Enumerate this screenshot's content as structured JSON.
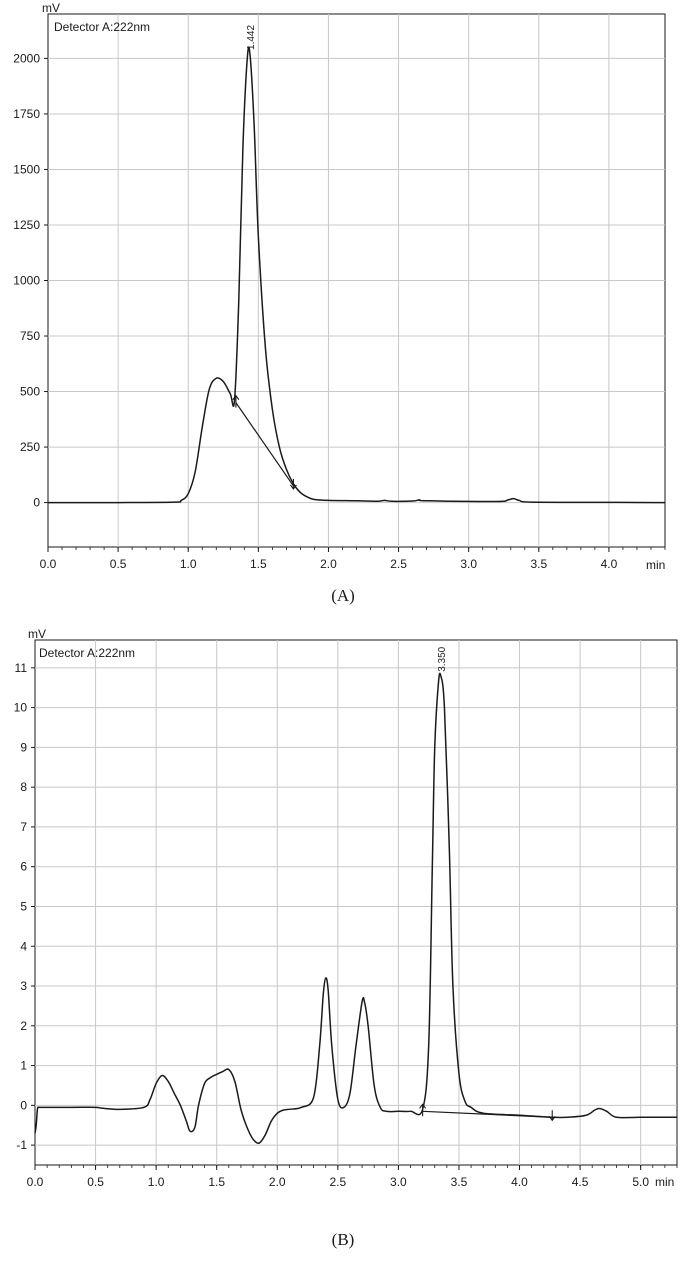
{
  "figure": {
    "caption_a": "(A)",
    "caption_b": "(B)"
  },
  "chart_data": [
    {
      "type": "line",
      "panel_caption": "(A)",
      "detector_label": "Detector A:222nm",
      "y_unit": "mV",
      "x_unit": "min",
      "xlim": [
        0,
        4.4
      ],
      "ylim": [
        -200,
        2200
      ],
      "x_ticks": [
        0.0,
        0.5,
        1.0,
        1.5,
        2.0,
        2.5,
        3.0,
        3.5,
        4.0
      ],
      "x_tick_labels": [
        "0.0",
        "0.5",
        "1.0",
        "1.5",
        "2.0",
        "2.5",
        "3.0",
        "3.5",
        "4.0"
      ],
      "y_ticks": [
        0,
        250,
        500,
        750,
        1000,
        1250,
        1500,
        1750,
        2000
      ],
      "y_tick_labels": [
        "0",
        "250",
        "500",
        "750",
        "1000",
        "1250",
        "1500",
        "1750",
        "2000"
      ],
      "grid": true,
      "series": [
        {
          "x": [
            0.0,
            0.5,
            0.9,
            0.95,
            1.0,
            1.05,
            1.1,
            1.15,
            1.2,
            1.25,
            1.3,
            1.33,
            1.36,
            1.39,
            1.42,
            1.44,
            1.47,
            1.5,
            1.55,
            1.6,
            1.65,
            1.7,
            1.75,
            1.8,
            1.85,
            1.9,
            2.0,
            2.2,
            2.35,
            2.4,
            2.45,
            2.6,
            2.65,
            2.7,
            3.2,
            3.28,
            3.32,
            3.36,
            3.45,
            4.0,
            4.4
          ],
          "y": [
            0,
            0,
            2,
            10,
            40,
            140,
            340,
            510,
            560,
            545,
            490,
            460,
            900,
            1600,
            1990,
            2020,
            1700,
            1200,
            700,
            420,
            250,
            150,
            85,
            45,
            25,
            14,
            10,
            8,
            6,
            10,
            6,
            7,
            12,
            8,
            5,
            12,
            18,
            10,
            2,
            1,
            0
          ]
        }
      ],
      "peak_labels": [
        {
          "x": 1.442,
          "y": 2020,
          "text": "1.442"
        }
      ],
      "integration_baseline": {
        "x": [
          1.34,
          1.75
        ],
        "y": [
          450,
          75
        ]
      },
      "integration_markers": [
        {
          "x": 1.34,
          "y": 450,
          "direction": "up"
        },
        {
          "x": 1.75,
          "y": 75,
          "direction": "down"
        }
      ]
    },
    {
      "type": "line",
      "panel_caption": "(B)",
      "detector_label": "Detector A:222nm",
      "y_unit": "mV",
      "x_unit": "min",
      "xlim": [
        0,
        5.3
      ],
      "ylim": [
        -1.5,
        11.7
      ],
      "x_ticks": [
        0.0,
        0.5,
        1.0,
        1.5,
        2.0,
        2.5,
        3.0,
        3.5,
        4.0,
        4.5,
        5.0
      ],
      "x_tick_labels": [
        "0.0",
        "0.5",
        "1.0",
        "1.5",
        "2.0",
        "2.5",
        "3.0",
        "3.5",
        "4.0",
        "4.5",
        "5.0"
      ],
      "y_ticks": [
        -1,
        0,
        1,
        2,
        3,
        4,
        5,
        6,
        7,
        8,
        9,
        10,
        11
      ],
      "y_tick_labels": [
        "-1",
        "0",
        "1",
        "2",
        "3",
        "4",
        "5",
        "6",
        "7",
        "8",
        "9",
        "10",
        "11"
      ],
      "grid": true,
      "series": [
        {
          "x": [
            0.0,
            0.01,
            0.02,
            0.03,
            0.05,
            0.3,
            0.5,
            0.55,
            0.7,
            0.9,
            0.95,
            1.0,
            1.05,
            1.1,
            1.15,
            1.2,
            1.25,
            1.28,
            1.32,
            1.35,
            1.4,
            1.45,
            1.5,
            1.55,
            1.6,
            1.65,
            1.7,
            1.75,
            1.8,
            1.85,
            1.9,
            1.95,
            2.0,
            2.05,
            2.1,
            2.2,
            2.3,
            2.35,
            2.38,
            2.4,
            2.42,
            2.45,
            2.5,
            2.55,
            2.6,
            2.65,
            2.7,
            2.72,
            2.75,
            2.8,
            2.85,
            2.9,
            3.0,
            3.1,
            3.2,
            3.25,
            3.28,
            3.3,
            3.33,
            3.35,
            3.38,
            3.42,
            3.45,
            3.5,
            3.55,
            3.6,
            3.7,
            4.0,
            4.27,
            4.4,
            4.55,
            4.62,
            4.66,
            4.72,
            4.8,
            5.0,
            5.3
          ],
          "y": [
            -0.7,
            -0.5,
            -0.1,
            -0.05,
            -0.05,
            -0.05,
            -0.05,
            -0.07,
            -0.1,
            -0.05,
            0.15,
            0.55,
            0.75,
            0.6,
            0.3,
            0.0,
            -0.4,
            -0.65,
            -0.55,
            0.0,
            0.55,
            0.7,
            0.78,
            0.85,
            0.9,
            0.6,
            -0.1,
            -0.55,
            -0.85,
            -0.95,
            -0.75,
            -0.4,
            -0.2,
            -0.12,
            -0.1,
            -0.05,
            0.2,
            1.5,
            2.8,
            3.2,
            2.9,
            1.5,
            0.15,
            -0.05,
            0.3,
            1.5,
            2.6,
            2.6,
            2.0,
            0.5,
            -0.05,
            -0.15,
            -0.15,
            -0.15,
            -0.1,
            1.5,
            6.0,
            9.0,
            10.6,
            10.8,
            10.0,
            6.5,
            3.0,
            0.8,
            0.1,
            -0.05,
            -0.2,
            -0.25,
            -0.3,
            -0.3,
            -0.25,
            -0.12,
            -0.08,
            -0.15,
            -0.3,
            -0.3,
            -0.3
          ]
        }
      ],
      "peak_labels": [
        {
          "x": 3.35,
          "y": 10.8,
          "text": "3.350"
        }
      ],
      "integration_baseline": {
        "x": [
          3.2,
          4.27
        ],
        "y": [
          -0.15,
          -0.3
        ]
      },
      "integration_markers": [
        {
          "x": 3.2,
          "y": -0.15,
          "direction": "up"
        },
        {
          "x": 4.27,
          "y": -0.3,
          "direction": "down"
        }
      ]
    }
  ]
}
